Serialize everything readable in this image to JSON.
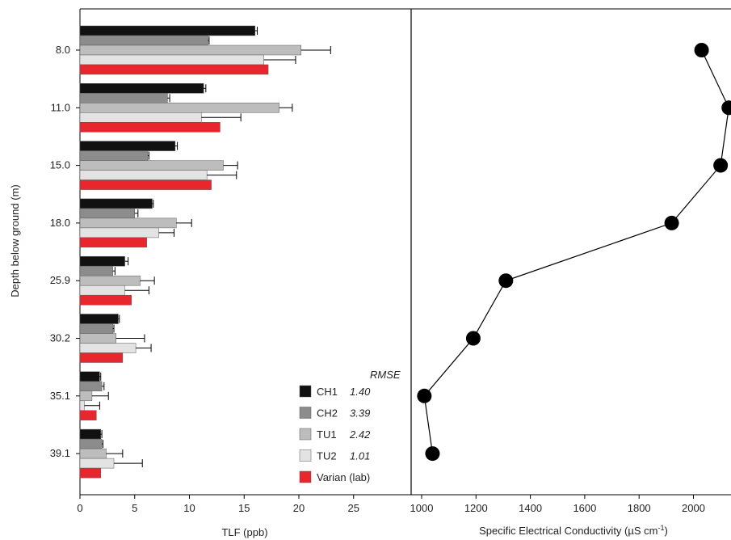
{
  "chart_data": [
    {
      "type": "bar",
      "orientation": "horizontal",
      "categories": [
        "8.0",
        "11.0",
        "15.0",
        "18.0",
        "25.9",
        "30.2",
        "35.1",
        "39.1"
      ],
      "ylabel": "Depth below ground (m)",
      "xlabel": "TLF (ppb)",
      "xlim": [
        0,
        30
      ],
      "xticks": [
        0,
        5,
        10,
        15,
        20,
        25
      ],
      "series": [
        {
          "name": "CH1",
          "color": "#111111",
          "values": [
            16.0,
            11.3,
            8.7,
            6.6,
            4.1,
            3.5,
            1.8,
            1.9
          ],
          "errors": [
            0.2,
            0.2,
            0.2,
            0.1,
            0.3,
            0.1,
            0.1,
            0.1
          ]
        },
        {
          "name": "CH2",
          "color": "#8c8c8c",
          "values": [
            11.7,
            8.0,
            6.2,
            5.0,
            3.0,
            3.0,
            2.0,
            2.0
          ],
          "errors": [
            0.1,
            0.2,
            0.1,
            0.3,
            0.2,
            0.1,
            0.2,
            0.1
          ]
        },
        {
          "name": "TU1",
          "color": "#bdbdbd",
          "values": [
            20.2,
            18.2,
            13.1,
            8.8,
            5.5,
            3.3,
            1.1,
            2.4
          ],
          "errors": [
            2.7,
            1.2,
            1.3,
            1.4,
            1.3,
            2.6,
            1.5,
            1.5
          ]
        },
        {
          "name": "TU2",
          "color": "#e3e3e3",
          "values": [
            16.8,
            11.1,
            11.6,
            7.2,
            4.1,
            5.1,
            0.4,
            3.1
          ],
          "errors": [
            2.9,
            3.6,
            2.7,
            1.4,
            2.2,
            1.4,
            1.4,
            2.6
          ]
        },
        {
          "name": "Varian (lab)",
          "color": "#e8262d",
          "values": [
            17.2,
            12.8,
            12.0,
            6.1,
            4.7,
            3.9,
            1.5,
            1.9
          ]
        }
      ],
      "legend": {
        "position": "bottom-right",
        "header": "RMSE",
        "entries": [
          {
            "label": "CH1",
            "rmse": "1.40",
            "color": "#111111"
          },
          {
            "label": "CH2",
            "rmse": "3.39",
            "color": "#8c8c8c"
          },
          {
            "label": "TU1",
            "rmse": "2.42",
            "color": "#bdbdbd"
          },
          {
            "label": "TU2",
            "rmse": "1.01",
            "color": "#e3e3e3"
          },
          {
            "label": "Varian (lab)",
            "rmse": "",
            "color": "#e8262d"
          }
        ]
      },
      "grid": false
    },
    {
      "type": "line",
      "markers": true,
      "xlabel": "Specific Electrical Conductivity (µS cm",
      "xlabel_superscript": "-1",
      "xlabel_suffix": ")",
      "xlim": [
        960,
        2140
      ],
      "xticks": [
        1000,
        1200,
        1400,
        1600,
        1800,
        2000
      ],
      "depths": [
        "8.0",
        "11.0",
        "15.0",
        "18.0",
        "25.9",
        "30.2",
        "35.1",
        "39.1"
      ],
      "values": [
        2030,
        2130,
        2100,
        1920,
        1310,
        1190,
        1010,
        1040
      ],
      "color": "#000000",
      "grid": false
    }
  ]
}
